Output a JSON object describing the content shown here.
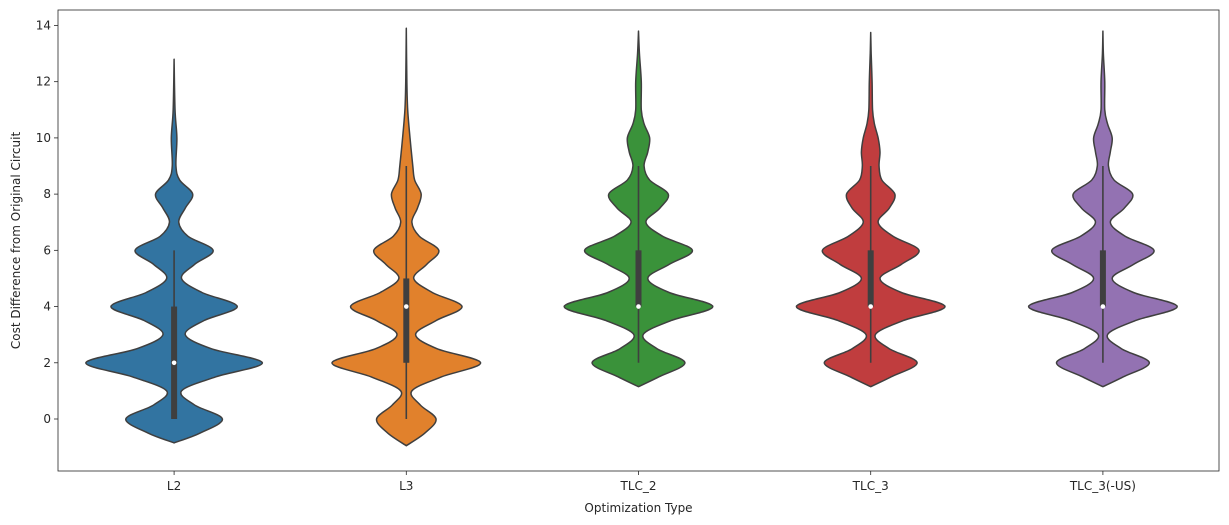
{
  "chart_data": {
    "type": "violin",
    "xlabel": "Optimization Type",
    "ylabel": "Cost Difference from Original Circuit",
    "ylim": [
      -1.85,
      14.55
    ],
    "yticks": [
      0,
      2,
      4,
      6,
      8,
      10,
      12,
      14
    ],
    "grid": false,
    "categories": [
      "L2",
      "L3",
      "TLC_2",
      "TLC_3",
      "TLC_3(-US)"
    ],
    "colors": [
      "#3274a1",
      "#e1812c",
      "#3a923a",
      "#c03d3e",
      "#9372b2"
    ],
    "series": [
      {
        "category": "L2",
        "min_extent": -0.85,
        "max_extent": 12.8,
        "median": 2,
        "q1": 0,
        "q3": 4,
        "whisker_low": 0,
        "whisker_high": 6,
        "density": [
          [
            -0.85,
            0.0
          ],
          [
            -0.5,
            0.28
          ],
          [
            0.0,
            0.52
          ],
          [
            0.5,
            0.22
          ],
          [
            1.0,
            0.08
          ],
          [
            1.5,
            0.45
          ],
          [
            2.0,
            0.95
          ],
          [
            2.5,
            0.4
          ],
          [
            3.0,
            0.12
          ],
          [
            3.5,
            0.32
          ],
          [
            4.0,
            0.68
          ],
          [
            4.5,
            0.3
          ],
          [
            5.0,
            0.08
          ],
          [
            5.5,
            0.22
          ],
          [
            6.0,
            0.42
          ],
          [
            6.5,
            0.15
          ],
          [
            7.0,
            0.05
          ],
          [
            7.5,
            0.12
          ],
          [
            8.0,
            0.2
          ],
          [
            8.5,
            0.06
          ],
          [
            9.0,
            0.02
          ],
          [
            10.0,
            0.03
          ],
          [
            11.0,
            0.01
          ],
          [
            12.8,
            0.0
          ]
        ]
      },
      {
        "category": "L3",
        "min_extent": -0.95,
        "max_extent": 13.9,
        "median": 4,
        "q1": 2,
        "q3": 5,
        "whisker_low": 0,
        "whisker_high": 9,
        "density": [
          [
            -0.95,
            0.0
          ],
          [
            -0.5,
            0.2
          ],
          [
            0.0,
            0.32
          ],
          [
            0.5,
            0.15
          ],
          [
            1.0,
            0.06
          ],
          [
            1.5,
            0.38
          ],
          [
            2.0,
            0.8
          ],
          [
            2.5,
            0.33
          ],
          [
            3.0,
            0.1
          ],
          [
            3.5,
            0.32
          ],
          [
            4.0,
            0.6
          ],
          [
            4.5,
            0.28
          ],
          [
            5.0,
            0.08
          ],
          [
            5.5,
            0.22
          ],
          [
            6.0,
            0.35
          ],
          [
            6.5,
            0.14
          ],
          [
            7.0,
            0.06
          ],
          [
            7.5,
            0.12
          ],
          [
            8.0,
            0.16
          ],
          [
            8.5,
            0.09
          ],
          [
            9.0,
            0.07
          ],
          [
            10.0,
            0.04
          ],
          [
            11.0,
            0.015
          ],
          [
            12.0,
            0.006
          ],
          [
            13.9,
            0.0
          ]
        ]
      },
      {
        "category": "TLC_2",
        "min_extent": 1.15,
        "max_extent": 13.8,
        "median": 4,
        "q1": 4,
        "q3": 6,
        "whisker_low": 2,
        "whisker_high": 9,
        "density": [
          [
            1.15,
            0.0
          ],
          [
            1.5,
            0.22
          ],
          [
            2.0,
            0.5
          ],
          [
            2.5,
            0.2
          ],
          [
            3.0,
            0.05
          ],
          [
            3.5,
            0.35
          ],
          [
            4.0,
            0.8
          ],
          [
            4.5,
            0.33
          ],
          [
            5.0,
            0.1
          ],
          [
            5.5,
            0.33
          ],
          [
            6.0,
            0.58
          ],
          [
            6.5,
            0.26
          ],
          [
            7.0,
            0.08
          ],
          [
            7.5,
            0.23
          ],
          [
            8.0,
            0.32
          ],
          [
            8.5,
            0.12
          ],
          [
            9.0,
            0.06
          ],
          [
            9.5,
            0.1
          ],
          [
            10.0,
            0.12
          ],
          [
            10.5,
            0.06
          ],
          [
            11.0,
            0.03
          ],
          [
            12.0,
            0.03
          ],
          [
            13.0,
            0.01
          ],
          [
            13.8,
            0.0
          ]
        ]
      },
      {
        "category": "TLC_3",
        "min_extent": 1.15,
        "max_extent": 13.75,
        "median": 4,
        "q1": 4,
        "q3": 6,
        "whisker_low": 2,
        "whisker_high": 9,
        "density": [
          [
            1.15,
            0.0
          ],
          [
            1.5,
            0.22
          ],
          [
            2.0,
            0.5
          ],
          [
            2.5,
            0.2
          ],
          [
            3.0,
            0.05
          ],
          [
            3.5,
            0.35
          ],
          [
            4.0,
            0.8
          ],
          [
            4.5,
            0.33
          ],
          [
            5.0,
            0.1
          ],
          [
            5.5,
            0.33
          ],
          [
            6.0,
            0.52
          ],
          [
            6.5,
            0.24
          ],
          [
            7.0,
            0.08
          ],
          [
            7.5,
            0.2
          ],
          [
            8.0,
            0.26
          ],
          [
            8.5,
            0.12
          ],
          [
            9.0,
            0.09
          ],
          [
            9.5,
            0.1
          ],
          [
            10.0,
            0.08
          ],
          [
            10.5,
            0.04
          ],
          [
            11.0,
            0.02
          ],
          [
            12.0,
            0.015
          ],
          [
            13.0,
            0.005
          ],
          [
            13.75,
            0.0
          ]
        ]
      },
      {
        "category": "TLC_3(-US)",
        "min_extent": 1.15,
        "max_extent": 13.8,
        "median": 4,
        "q1": 4,
        "q3": 6,
        "whisker_low": 2,
        "whisker_high": 9,
        "density": [
          [
            1.15,
            0.0
          ],
          [
            1.5,
            0.22
          ],
          [
            2.0,
            0.5
          ],
          [
            2.5,
            0.2
          ],
          [
            3.0,
            0.05
          ],
          [
            3.5,
            0.35
          ],
          [
            4.0,
            0.8
          ],
          [
            4.5,
            0.33
          ],
          [
            5.0,
            0.1
          ],
          [
            5.5,
            0.33
          ],
          [
            6.0,
            0.55
          ],
          [
            6.5,
            0.24
          ],
          [
            7.0,
            0.08
          ],
          [
            7.5,
            0.23
          ],
          [
            8.0,
            0.32
          ],
          [
            8.5,
            0.12
          ],
          [
            9.0,
            0.06
          ],
          [
            9.5,
            0.08
          ],
          [
            10.0,
            0.1
          ],
          [
            10.5,
            0.05
          ],
          [
            11.0,
            0.02
          ],
          [
            12.0,
            0.02
          ],
          [
            13.0,
            0.005
          ],
          [
            13.8,
            0.0
          ]
        ]
      }
    ]
  }
}
